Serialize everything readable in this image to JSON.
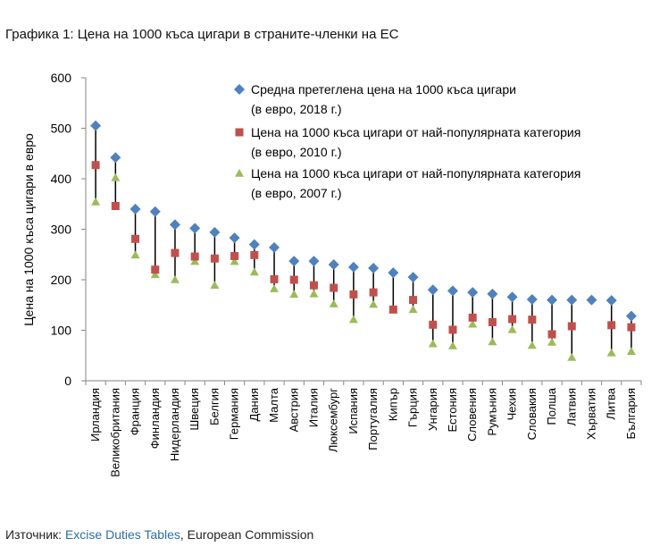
{
  "figure_title": "Графика 1: Цена на 1000 къса цигари в страните-членки на ЕС",
  "source": {
    "prefix": "Източник: ",
    "link_text": "Excise Duties Tables",
    "suffix": ", European Commission"
  },
  "colors": {
    "series_2018": "#4f81bd",
    "series_2010": "#c0504d",
    "series_2007": "#9bbb59",
    "line": "#000000",
    "axis": "#868686",
    "link": "#2a6fa8"
  },
  "chart_data": {
    "type": "scatter",
    "title": "",
    "xlabel": "",
    "ylabel": "Цена на 1000 къса цигари в евро",
    "ylim": [
      0,
      600
    ],
    "yticks": [
      0,
      100,
      200,
      300,
      400,
      500,
      600
    ],
    "grid": false,
    "legend_position": "top-right",
    "categories": [
      "Ирландия",
      "Великобритания",
      "Франция",
      "Финландия",
      "Нидерландия",
      "Швеция",
      "Белгия",
      "Германия",
      "Дания",
      "Малта",
      "Австрия",
      "Италия",
      "Люксембург",
      "Испания",
      "Португалия",
      "Кипър",
      "Гърция",
      "Унгария",
      "Естония",
      "Словения",
      "Румъния",
      "Чехия",
      "Словакия",
      "Полша",
      "Латвия",
      "Хърватия",
      "Литва",
      "България"
    ],
    "series": [
      {
        "name": "2018",
        "legend": [
          "Средна претеглена цена на 1000 къса цигари",
          "(в евро, 2018 г.)"
        ],
        "marker": "diamond",
        "color": "#4f81bd",
        "values": [
          505,
          442,
          340,
          335,
          309,
          302,
          294,
          283,
          270,
          264,
          237,
          237,
          230,
          225,
          223,
          214,
          205,
          180,
          178,
          175,
          172,
          166,
          161,
          160,
          160,
          160,
          159,
          128
        ]
      },
      {
        "name": "2010",
        "legend": [
          "Цена на 1000 къса цигари от най-популярната категория",
          "(в евро, 2010 г.)"
        ],
        "marker": "square",
        "color": "#c0504d",
        "values": [
          427,
          346,
          281,
          220,
          253,
          246,
          242,
          247,
          249,
          201,
          200,
          189,
          184,
          171,
          175,
          141,
          160,
          111,
          101,
          125,
          116,
          122,
          121,
          92,
          108,
          null,
          110,
          106
        ]
      },
      {
        "name": "2007",
        "legend": [
          "Цена на 1000 къса цигари от най-популярната категория",
          "(в евро, 2007 г.)"
        ],
        "marker": "triangle",
        "color": "#9bbb59",
        "values": [
          354,
          402,
          249,
          210,
          200,
          236,
          189,
          236,
          215,
          182,
          171,
          172,
          152,
          121,
          151,
          141,
          141,
          73,
          69,
          112,
          77,
          101,
          70,
          76,
          46,
          null,
          55,
          58
        ]
      }
    ]
  }
}
